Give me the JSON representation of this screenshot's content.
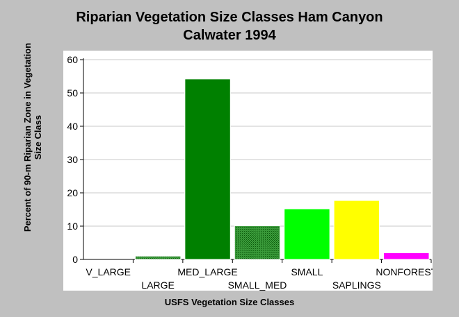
{
  "chart_data": {
    "type": "bar",
    "title": "Riparian Vegetation Size Classes Ham Canyon",
    "subtitle": "Calwater 1994",
    "xlabel": "USFS Vegetation Size Classes",
    "ylabel": "Percent of 90-m Riparian Zone in Vegetation Size Class",
    "ylim": [
      0,
      60
    ],
    "yticks": [
      0,
      10,
      20,
      30,
      40,
      50,
      60
    ],
    "grid": true,
    "categories": [
      "V_LARGE",
      "LARGE",
      "MED_LARGE",
      "SMALL_MED",
      "SMALL",
      "SAPLINGS",
      "NONFOREST"
    ],
    "values": [
      0,
      1,
      54.2,
      10.1,
      15.2,
      17.7,
      2
    ],
    "bar_colors": [
      "#006400",
      "#0a6a0a",
      "#008000",
      "#2f8f2f",
      "#00ff00",
      "#ffff00",
      "#ff00ff"
    ],
    "bar_patterns": [
      "solid",
      "hatched",
      "solid",
      "hatched",
      "solid",
      "solid",
      "solid"
    ]
  }
}
